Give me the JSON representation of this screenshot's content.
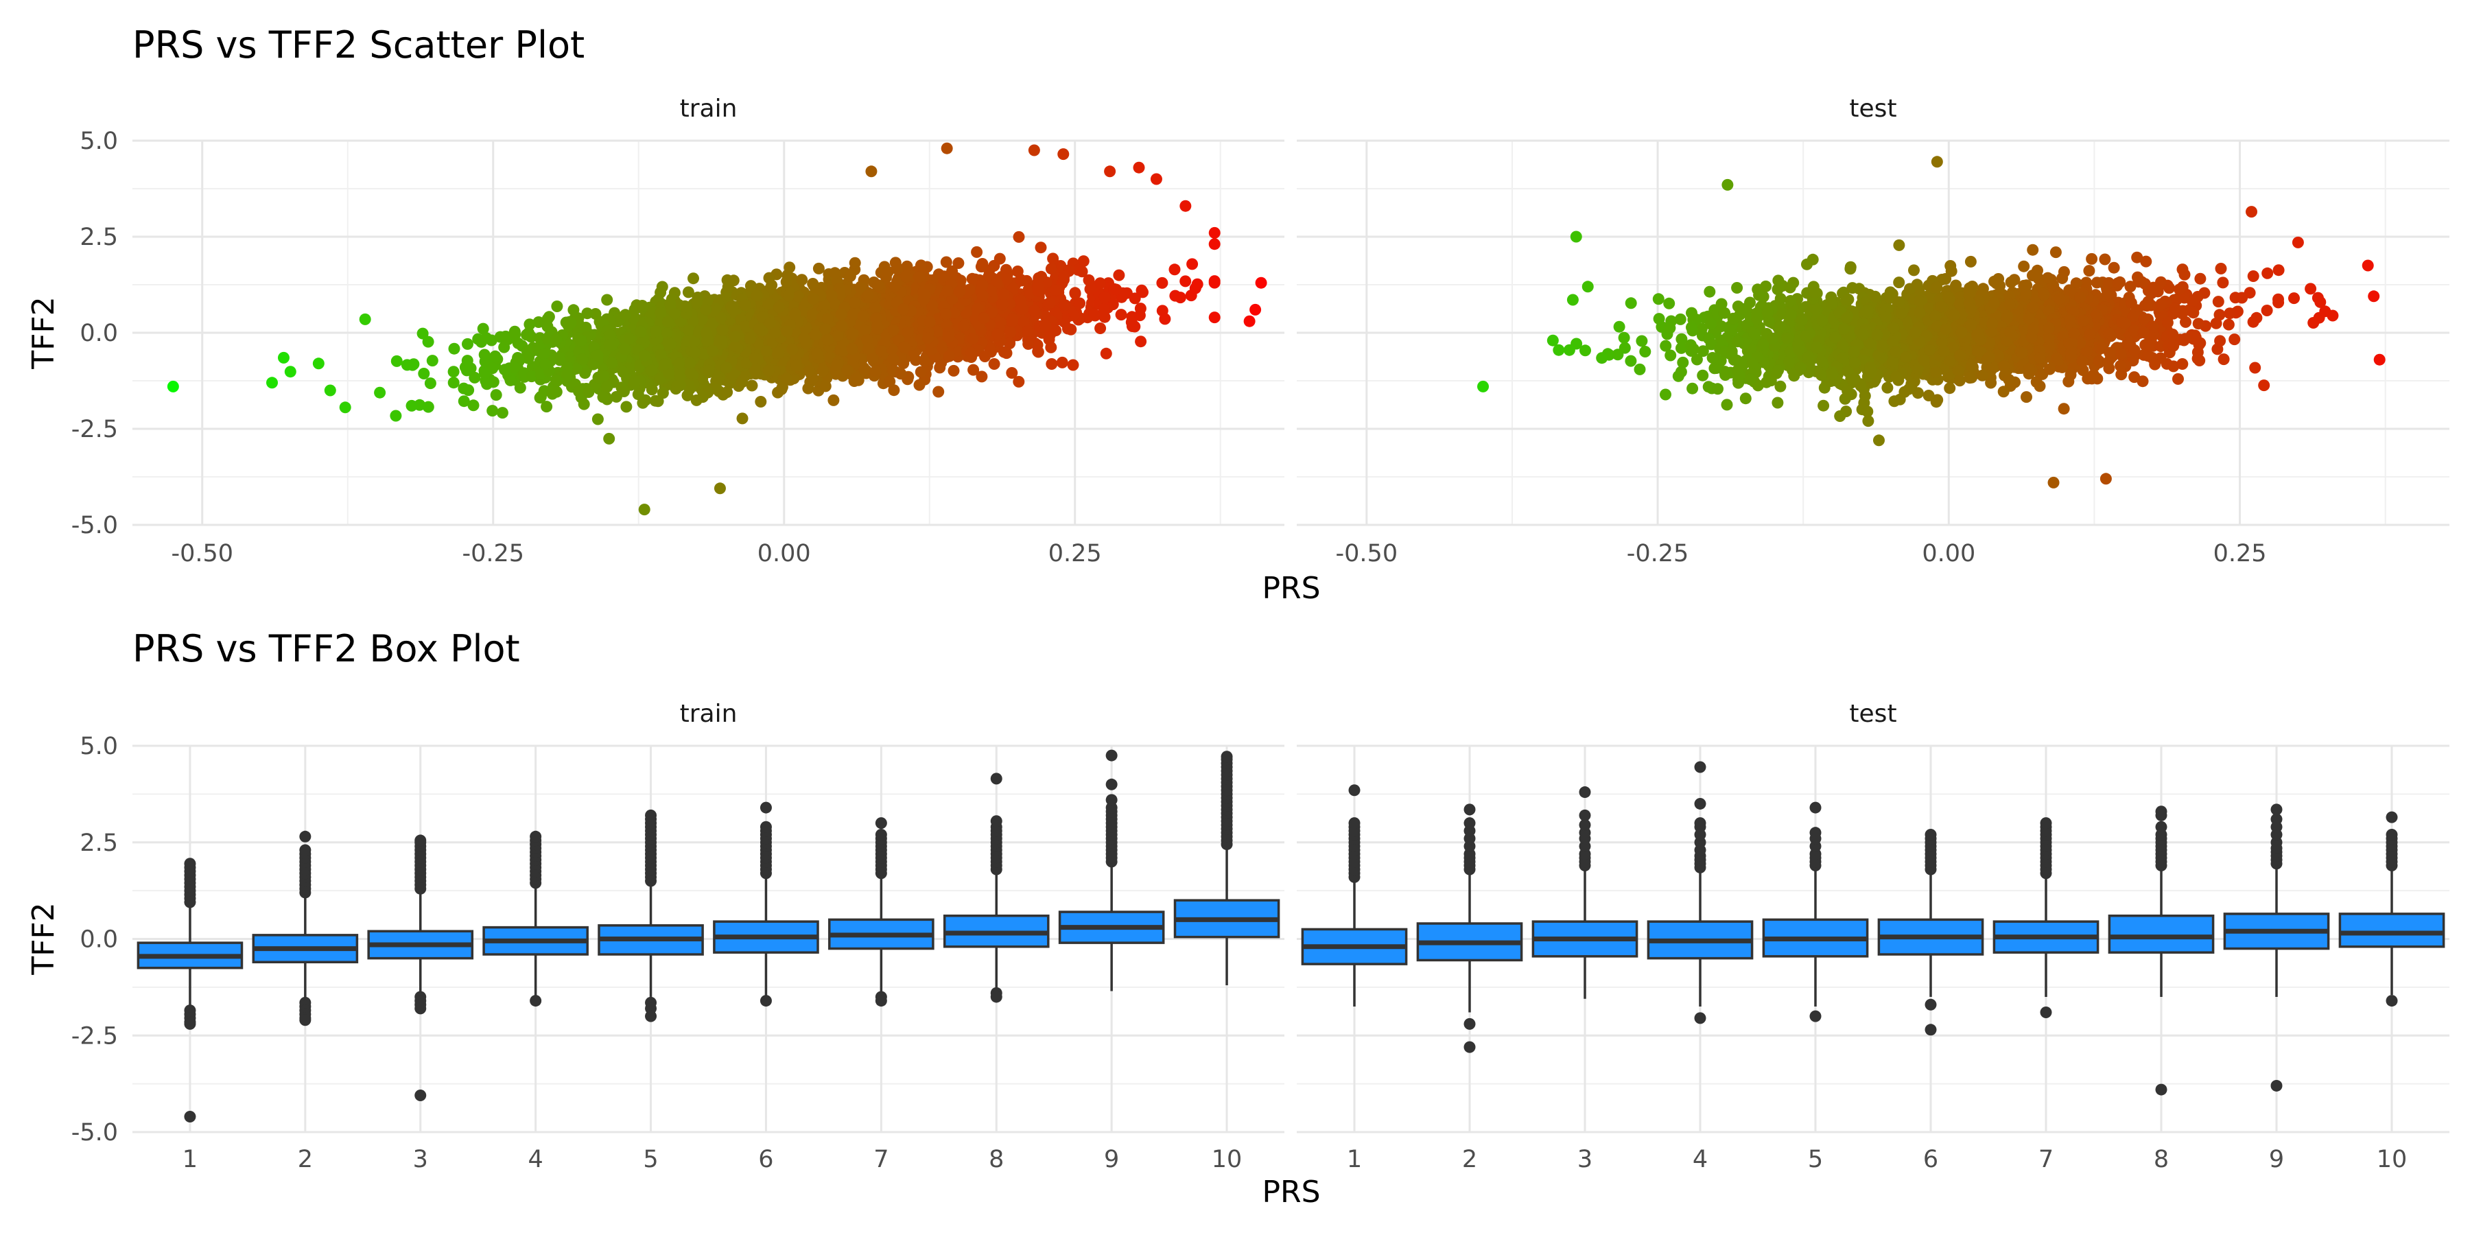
{
  "chart_data": [
    {
      "type": "scatter",
      "title": "PRS vs TFF2 Scatter Plot",
      "xlabel": "PRS",
      "ylabel": "TFF2",
      "xlim": [
        -0.56,
        0.43
      ],
      "ylim": [
        -5,
        5
      ],
      "x_ticks": [
        -0.5,
        -0.25,
        0.0,
        0.25
      ],
      "x_tick_labels": [
        "-0.50",
        "-0.25",
        "0.00",
        "0.25"
      ],
      "y_ticks": [
        -5,
        -2.5,
        0,
        2.5,
        5
      ],
      "y_tick_labels": [
        "-5.0",
        "-2.5",
        "0.0",
        "2.5",
        "5.0"
      ],
      "grid": true,
      "color_gradient": [
        "#00ff00",
        "#ff0000"
      ],
      "panels": [
        {
          "name": "train",
          "cloud": {
            "x_mean": 0.02,
            "x_sd": 0.11,
            "intercept": 0.0,
            "slope": 3.0,
            "noise_sd": 0.55,
            "n": 4500
          },
          "outliers": [
            {
              "x": -0.525,
              "y": -1.4
            },
            {
              "x": -0.44,
              "y": -1.3
            },
            {
              "x": -0.43,
              "y": -0.65
            },
            {
              "x": -0.4,
              "y": -0.8
            },
            {
              "x": -0.39,
              "y": -1.5
            },
            {
              "x": -0.36,
              "y": 0.35
            },
            {
              "x": -0.32,
              "y": -1.9
            },
            {
              "x": -0.12,
              "y": -4.6
            },
            {
              "x": -0.055,
              "y": -4.05
            },
            {
              "x": -0.16,
              "y": -2.25
            },
            {
              "x": 0.14,
              "y": 4.8
            },
            {
              "x": 0.215,
              "y": 4.75
            },
            {
              "x": 0.24,
              "y": 4.65
            },
            {
              "x": 0.075,
              "y": 4.2
            },
            {
              "x": 0.28,
              "y": 4.2
            },
            {
              "x": 0.305,
              "y": 4.3
            },
            {
              "x": 0.32,
              "y": 4.0
            },
            {
              "x": 0.345,
              "y": 3.3
            },
            {
              "x": 0.37,
              "y": 2.6
            },
            {
              "x": 0.4,
              "y": 0.3
            },
            {
              "x": 0.41,
              "y": 1.3
            },
            {
              "x": 0.405,
              "y": 0.6
            },
            {
              "x": 0.37,
              "y": 0.4
            }
          ]
        },
        {
          "name": "test",
          "cloud": {
            "x_mean": 0.0,
            "x_sd": 0.1,
            "intercept": 0.0,
            "slope": 1.5,
            "noise_sd": 0.62,
            "n": 2600
          },
          "outliers": [
            {
              "x": -0.4,
              "y": -1.4
            },
            {
              "x": -0.32,
              "y": 2.5
            },
            {
              "x": -0.31,
              "y": 1.2
            },
            {
              "x": -0.34,
              "y": -0.2
            },
            {
              "x": -0.335,
              "y": -0.45
            },
            {
              "x": -0.19,
              "y": 3.85
            },
            {
              "x": -0.01,
              "y": 4.45
            },
            {
              "x": -0.06,
              "y": -2.8
            },
            {
              "x": 0.09,
              "y": -3.9
            },
            {
              "x": 0.135,
              "y": -3.8
            },
            {
              "x": 0.26,
              "y": 3.15
            },
            {
              "x": 0.37,
              "y": -0.7
            },
            {
              "x": 0.36,
              "y": 1.75
            },
            {
              "x": 0.365,
              "y": 0.95
            },
            {
              "x": 0.3,
              "y": 2.35
            }
          ]
        }
      ]
    },
    {
      "type": "box",
      "title": "PRS vs TFF2 Box Plot",
      "xlabel": "PRS",
      "ylabel": "TFF2",
      "ylim": [
        -5,
        5
      ],
      "y_ticks": [
        -5,
        -2.5,
        0,
        2.5,
        5
      ],
      "y_tick_labels": [
        "-5.0",
        "-2.5",
        "0.0",
        "2.5",
        "5.0"
      ],
      "categories": [
        "1",
        "2",
        "3",
        "4",
        "5",
        "6",
        "7",
        "8",
        "9",
        "10"
      ],
      "box_color": "#1e90ff",
      "grid": true,
      "panels": [
        {
          "name": "train",
          "boxes": [
            {
              "low": -1.75,
              "q1": -0.75,
              "median": -0.45,
              "q3": -0.1,
              "high": 0.85,
              "out_hi": [
                0.95,
                1.05,
                1.15,
                1.25,
                1.35,
                1.45,
                1.55,
                1.65,
                1.75,
                1.85,
                1.95
              ],
              "out_lo": [
                -1.85,
                -1.95,
                -2.05,
                -2.15,
                -2.2,
                -4.6
              ]
            },
            {
              "low": -1.55,
              "q1": -0.6,
              "median": -0.25,
              "q3": 0.1,
              "high": 1.1,
              "out_hi": [
                1.2,
                1.3,
                1.4,
                1.5,
                1.6,
                1.7,
                1.8,
                1.9,
                2.0,
                2.1,
                2.2,
                2.3,
                2.65
              ],
              "out_lo": [
                -1.65,
                -1.75,
                -1.85,
                -1.95,
                -2.05,
                -2.1
              ]
            },
            {
              "low": -1.45,
              "q1": -0.5,
              "median": -0.15,
              "q3": 0.2,
              "high": 1.2,
              "out_hi": [
                1.3,
                1.4,
                1.5,
                1.6,
                1.7,
                1.8,
                1.9,
                2.0,
                2.1,
                2.2,
                2.3,
                2.4,
                2.5,
                2.55
              ],
              "out_lo": [
                -1.5,
                -1.6,
                -1.7,
                -1.8,
                -4.05
              ]
            },
            {
              "low": -1.5,
              "q1": -0.4,
              "median": -0.05,
              "q3": 0.3,
              "high": 1.35,
              "out_hi": [
                1.45,
                1.55,
                1.65,
                1.75,
                1.85,
                1.95,
                2.05,
                2.15,
                2.25,
                2.35,
                2.45,
                2.55,
                2.65
              ],
              "out_lo": [
                -1.6
              ]
            },
            {
              "low": -1.5,
              "q1": -0.4,
              "median": 0.0,
              "q3": 0.35,
              "high": 1.4,
              "out_hi": [
                1.5,
                1.6,
                1.7,
                1.8,
                1.9,
                2.0,
                2.1,
                2.2,
                2.3,
                2.4,
                2.5,
                2.6,
                2.7,
                2.8,
                2.9,
                3.0,
                3.1,
                3.2
              ],
              "out_lo": [
                -1.65,
                -1.8,
                -2.0
              ]
            },
            {
              "low": -1.5,
              "q1": -0.35,
              "median": 0.05,
              "q3": 0.45,
              "high": 1.6,
              "out_hi": [
                1.7,
                1.8,
                1.9,
                2.0,
                2.1,
                2.2,
                2.3,
                2.4,
                2.5,
                2.6,
                2.7,
                2.8,
                2.9,
                3.4
              ],
              "out_lo": [
                -1.6
              ]
            },
            {
              "low": -1.4,
              "q1": -0.25,
              "median": 0.1,
              "q3": 0.5,
              "high": 1.6,
              "out_hi": [
                1.7,
                1.8,
                1.9,
                2.0,
                2.1,
                2.2,
                2.3,
                2.4,
                2.5,
                2.6,
                2.7,
                3.0
              ],
              "out_lo": [
                -1.5,
                -1.6
              ]
            },
            {
              "low": -1.3,
              "q1": -0.2,
              "median": 0.15,
              "q3": 0.6,
              "high": 1.7,
              "out_hi": [
                1.8,
                1.9,
                2.0,
                2.1,
                2.2,
                2.3,
                2.4,
                2.5,
                2.6,
                2.7,
                2.8,
                2.9,
                3.05,
                4.15
              ],
              "out_lo": [
                -1.4,
                -1.5
              ]
            },
            {
              "low": -1.35,
              "q1": -0.1,
              "median": 0.3,
              "q3": 0.7,
              "high": 1.9,
              "out_hi": [
                2.0,
                2.1,
                2.2,
                2.3,
                2.4,
                2.5,
                2.6,
                2.7,
                2.8,
                2.9,
                3.0,
                3.1,
                3.2,
                3.3,
                3.4,
                3.6,
                4.0,
                4.75
              ],
              "out_lo": []
            },
            {
              "low": -1.2,
              "q1": 0.05,
              "median": 0.5,
              "q3": 1.0,
              "high": 2.35,
              "out_hi": [
                2.45,
                2.55,
                2.65,
                2.75,
                2.85,
                2.95,
                3.05,
                3.15,
                3.25,
                3.35,
                3.45,
                3.55,
                3.65,
                3.75,
                3.85,
                3.95,
                4.05,
                4.15,
                4.25,
                4.35,
                4.45,
                4.55,
                4.65,
                4.72
              ],
              "out_lo": []
            }
          ]
        },
        {
          "name": "test",
          "boxes": [
            {
              "low": -1.75,
              "q1": -0.65,
              "median": -0.2,
              "q3": 0.25,
              "high": 1.5,
              "out_hi": [
                1.6,
                1.7,
                1.8,
                1.9,
                2.0,
                2.1,
                2.2,
                2.3,
                2.4,
                2.5,
                2.6,
                2.7,
                2.8,
                2.9,
                3.0,
                3.85
              ],
              "out_lo": []
            },
            {
              "low": -1.9,
              "q1": -0.55,
              "median": -0.1,
              "q3": 0.4,
              "high": 1.7,
              "out_hi": [
                1.8,
                1.9,
                2.0,
                2.1,
                2.2,
                2.4,
                2.6,
                2.8,
                3.0,
                3.35
              ],
              "out_lo": [
                -2.2,
                -2.8
              ]
            },
            {
              "low": -1.55,
              "q1": -0.45,
              "median": 0.0,
              "q3": 0.45,
              "high": 1.8,
              "out_hi": [
                1.9,
                2.0,
                2.1,
                2.2,
                2.4,
                2.6,
                2.75,
                2.95,
                3.2,
                3.8
              ],
              "out_lo": []
            },
            {
              "low": -1.75,
              "q1": -0.5,
              "median": -0.05,
              "q3": 0.45,
              "high": 1.75,
              "out_hi": [
                1.85,
                1.95,
                2.05,
                2.15,
                2.3,
                2.5,
                2.7,
                2.9,
                3.0,
                3.5,
                4.45
              ],
              "out_lo": [
                -2.05
              ]
            },
            {
              "low": -1.75,
              "q1": -0.45,
              "median": 0.0,
              "q3": 0.5,
              "high": 1.8,
              "out_hi": [
                1.9,
                2.0,
                2.1,
                2.2,
                2.4,
                2.6,
                2.75,
                3.4
              ],
              "out_lo": [
                -2.0
              ]
            },
            {
              "low": -1.5,
              "q1": -0.4,
              "median": 0.05,
              "q3": 0.5,
              "high": 1.7,
              "out_hi": [
                1.8,
                1.9,
                2.0,
                2.1,
                2.2,
                2.3,
                2.4,
                2.5,
                2.6,
                2.7
              ],
              "out_lo": [
                -1.7,
                -2.35
              ]
            },
            {
              "low": -1.5,
              "q1": -0.35,
              "median": 0.05,
              "q3": 0.45,
              "high": 1.6,
              "out_hi": [
                1.7,
                1.8,
                1.9,
                2.0,
                2.1,
                2.2,
                2.3,
                2.4,
                2.5,
                2.6,
                2.7,
                2.8,
                2.9,
                3.0
              ],
              "out_lo": [
                -1.9
              ]
            },
            {
              "low": -1.5,
              "q1": -0.35,
              "median": 0.05,
              "q3": 0.6,
              "high": 1.8,
              "out_hi": [
                1.9,
                2.0,
                2.1,
                2.2,
                2.3,
                2.4,
                2.5,
                2.6,
                2.7,
                2.9,
                3.2,
                3.3
              ],
              "out_lo": [
                -3.9
              ]
            },
            {
              "low": -1.5,
              "q1": -0.25,
              "median": 0.2,
              "q3": 0.65,
              "high": 1.85,
              "out_hi": [
                1.95,
                2.05,
                2.15,
                2.25,
                2.35,
                2.5,
                2.7,
                2.9,
                3.1,
                3.35
              ],
              "out_lo": [
                -3.8
              ]
            },
            {
              "low": -1.45,
              "q1": -0.2,
              "median": 0.15,
              "q3": 0.65,
              "high": 1.8,
              "out_hi": [
                1.9,
                2.0,
                2.1,
                2.2,
                2.3,
                2.4,
                2.5,
                2.6,
                2.7,
                3.15
              ],
              "out_lo": [
                -1.6
              ]
            }
          ]
        }
      ]
    }
  ]
}
